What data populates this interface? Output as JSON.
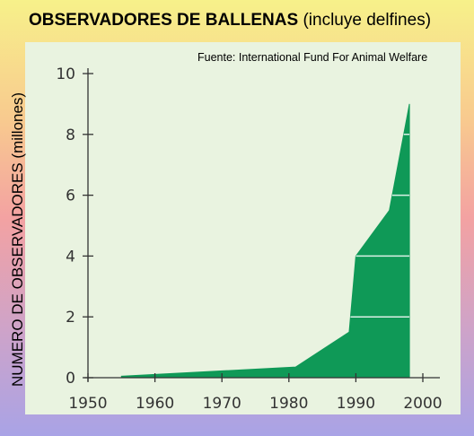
{
  "title_bold": "OBSERVADORES DE BALLENAS",
  "title_rest": "(incluye delfines)",
  "source": "Fuente: International Fund For Animal Welfare",
  "colors": {
    "area": "#0f9957",
    "axis": "#333333",
    "panel": "#e9f3e0"
  },
  "chart_data": {
    "type": "area",
    "title": "OBSERVADORES DE BALLENAS (incluye delfines)",
    "ylabel": "NUMERO DE OBSERVADORES (millones)",
    "xlabel": "",
    "xlim": [
      1950,
      2000
    ],
    "ylim": [
      0,
      10
    ],
    "xticks": [
      "1950",
      "1960",
      "1970",
      "1980",
      "1990",
      "2000"
    ],
    "yticks": [
      "0",
      "2",
      "4",
      "6",
      "8",
      "10"
    ],
    "series": [
      {
        "x": [
          1955,
          1981,
          1989,
          1990,
          1995,
          1998
        ],
        "values": [
          0.05,
          0.35,
          1.5,
          4.0,
          5.5,
          9.0
        ]
      }
    ]
  }
}
